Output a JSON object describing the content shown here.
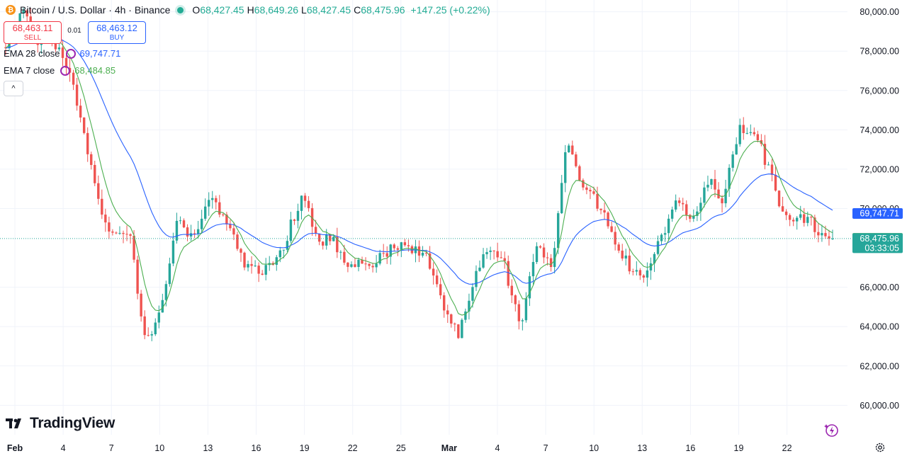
{
  "header": {
    "symbol_title": "Bitcoin / U.S. Dollar · 4h · Binance",
    "open_label": "O",
    "open_value": "68,427.45",
    "high_label": "H",
    "high_value": "68,649.26",
    "low_label": "L",
    "low_value": "68,427.45",
    "close_label": "C",
    "close_value": "68,475.96",
    "change": "+147.25 (+0.22%)"
  },
  "trade": {
    "sell_price": "68,463.11",
    "sell_label": "SELL",
    "spread": "0.01",
    "buy_price": "68,463.12",
    "buy_label": "BUY"
  },
  "indicators": [
    {
      "name": "EMA 28 close",
      "value": "69,747.71",
      "color": "#2962ff"
    },
    {
      "name": "EMA 7 close",
      "value": "68,484.85",
      "color": "#4caf50"
    }
  ],
  "collapse_icon": "chevron-up-icon",
  "brand": "TradingView",
  "chart_data": {
    "type": "candlestick",
    "y_ticks": [
      "80,000.00",
      "78,000.00",
      "76,000.00",
      "74,000.00",
      "72,000.00",
      "70,000.00",
      "66,000.00",
      "64,000.00",
      "62,000.00",
      "60,000.00"
    ],
    "x_ticks": [
      "Feb",
      "4",
      "7",
      "10",
      "13",
      "16",
      "19",
      "22",
      "25",
      "Mar",
      "4",
      "7",
      "10",
      "13",
      "16",
      "19",
      "22"
    ],
    "ylim": [
      58500,
      80600
    ],
    "price_labels": {
      "ema28": "69,747.71",
      "ema7": "68,484.85",
      "last": "68,475.96",
      "countdown": "03:33:05"
    },
    "last_price": 68475.96,
    "ema28_value": 69747.71,
    "ema7_value": 68484.85,
    "colors": {
      "up": "#26a69a",
      "down": "#ef5350",
      "ema28": "#2962ff",
      "ema7": "#4caf50",
      "last": "#26a69a"
    },
    "price_path": [
      78200,
      80000,
      78500,
      78700,
      77000,
      74000,
      70000,
      68500,
      68400,
      63000,
      65000,
      69500,
      68500,
      70500,
      69800,
      67500,
      66800,
      67000,
      68500,
      70800,
      68500,
      68300,
      67200,
      67000,
      67500,
      68200,
      68000,
      67500,
      65000,
      63500,
      66500,
      68000,
      67000,
      63800,
      68000,
      67000,
      73500,
      71000,
      70200,
      68500,
      67000,
      66500,
      68500,
      70500,
      69500,
      71500,
      70500,
      74200,
      74000,
      71700,
      69500,
      69700,
      69000,
      68400
    ]
  }
}
